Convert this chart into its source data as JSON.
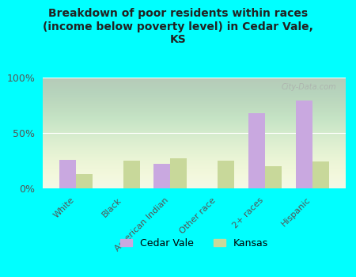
{
  "title": "Breakdown of poor residents within races\n(income below poverty level) in Cedar Vale,\nKS",
  "categories": [
    "White",
    "Black",
    "American Indian",
    "Other race",
    "2+ races",
    "Hispanic"
  ],
  "cedar_vale_values": [
    26,
    0,
    22,
    0,
    68,
    79
  ],
  "kansas_values": [
    13,
    25,
    27,
    25,
    20,
    24
  ],
  "cedar_vale_color": "#c9a8e0",
  "kansas_color": "#c8d89a",
  "bg_color": "#00ffff",
  "yticks": [
    0,
    50,
    100
  ],
  "ylabels": [
    "0%",
    "50%",
    "100%"
  ],
  "ylim": [
    0,
    100
  ],
  "bar_width": 0.35,
  "watermark": "City-Data.com",
  "legend_cedar_vale": "Cedar Vale",
  "legend_kansas": "Kansas"
}
